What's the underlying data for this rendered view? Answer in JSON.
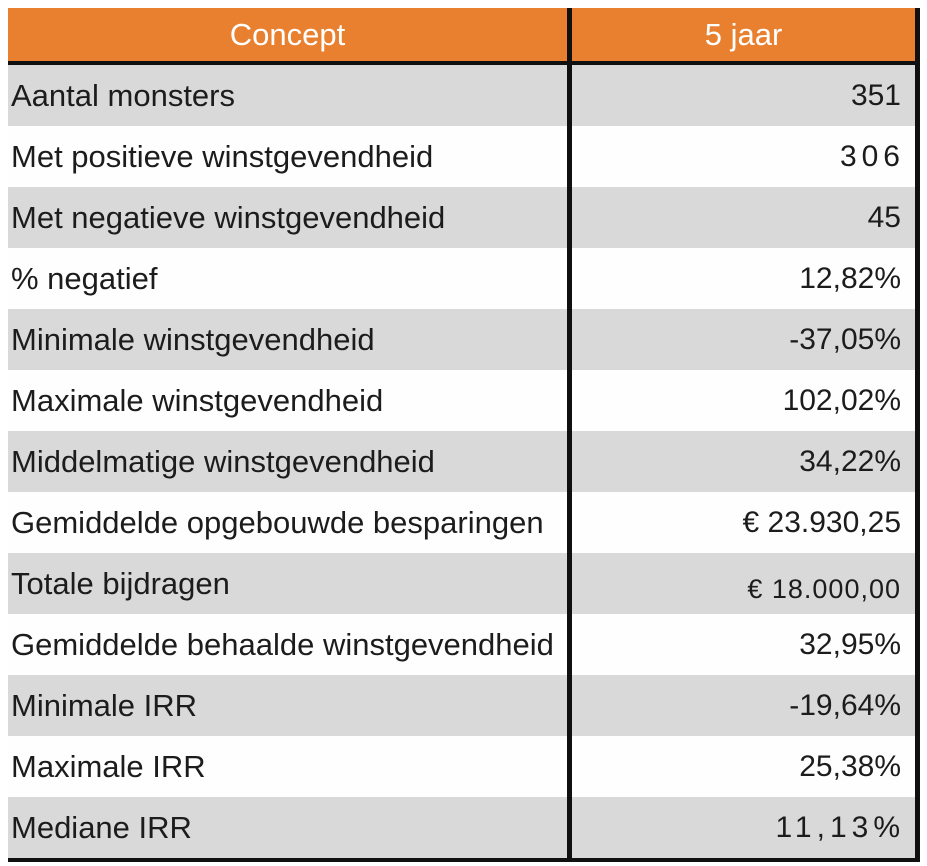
{
  "colors": {
    "header_bg": "#E8802F",
    "header_text": "#FFFFFF",
    "row_bg": "#FEFEFE",
    "row_alt_bg": "#D9D9D9",
    "border": "#101010",
    "text": "#1C1C1C"
  },
  "chart_data": {
    "type": "table",
    "title": "",
    "columns": [
      "Concept",
      "5 jaar"
    ],
    "rows": [
      {
        "concept": "Aantal monsters",
        "value": "351"
      },
      {
        "concept": "Met positieve winstgevendheid",
        "value": "306",
        "value_style": "spaced"
      },
      {
        "concept": "Met negatieve winstgevendheid",
        "value": "45"
      },
      {
        "concept": "% negatief",
        "value": "12,82%"
      },
      {
        "concept": "Minimale winstgevendheid",
        "value": "-37,05%"
      },
      {
        "concept": "Maximale winstgevendheid",
        "value": "102,02%"
      },
      {
        "concept": "Middelmatige winstgevendheid",
        "value": "34,22%"
      },
      {
        "concept": "Gemiddelde opgebouwde besparingen",
        "value": "€ 23.930,25"
      },
      {
        "concept": "Totale bijdragen",
        "value": "€ 18.000,00",
        "value_style": "small-low"
      },
      {
        "concept": "Gemiddelde behaalde winstgevendheid",
        "value": "32,95%"
      },
      {
        "concept": "Minimale IRR",
        "value": "-19,64%"
      },
      {
        "concept": "Maximale IRR",
        "value": "25,38%"
      },
      {
        "concept": "Mediane IRR",
        "value": "11,13%",
        "value_style": "spaced"
      }
    ]
  }
}
